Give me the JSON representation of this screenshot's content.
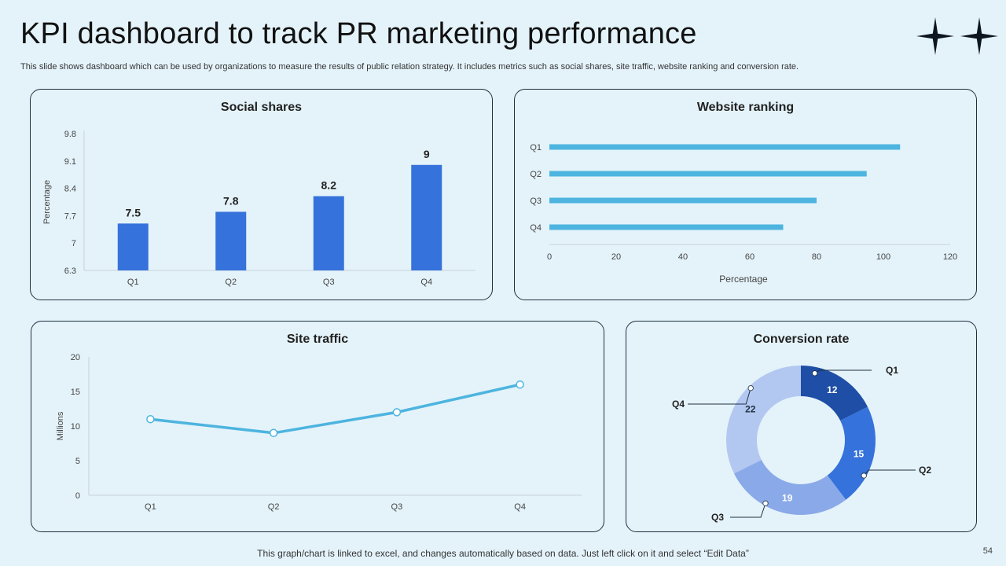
{
  "header": {
    "title": "KPI dashboard to track PR marketing performance",
    "subtitle": "This slide shows dashboard which can be used by organizations to measure the results of public relation strategy. It includes metrics such as social shares, site traffic, website ranking and conversion rate."
  },
  "footer": {
    "note": "This graph/chart is linked to excel, and changes automatically based on data. Just left click on it and select “Edit Data”",
    "page_number": "54"
  },
  "colors": {
    "bar_blue": "#3572db",
    "light_blue": "#4db4df",
    "q1": "#1f4ea6",
    "q2": "#3572db",
    "q3": "#8aa9e8",
    "q4": "#b3c8f1"
  },
  "chart_data": [
    {
      "id": "social",
      "type": "bar",
      "title": "Social shares",
      "categories": [
        "Q1",
        "Q2",
        "Q3",
        "Q4"
      ],
      "values": [
        7.5,
        7.8,
        8.2,
        9
      ],
      "value_labels": [
        "7.5",
        "7.8",
        "8.2",
        "9"
      ],
      "ylabel": "Percentage",
      "xlabel": "",
      "ylim": [
        6.3,
        9.8
      ],
      "yticks": [
        "9.8",
        "9.1",
        "8.4",
        "7.7",
        "7",
        "6.3"
      ],
      "grid": false
    },
    {
      "id": "rank",
      "type": "bar",
      "orientation": "horizontal",
      "title": "Website ranking",
      "categories": [
        "Q1",
        "Q2",
        "Q3",
        "Q4"
      ],
      "values": [
        105,
        95,
        80,
        70
      ],
      "xlabel": "Percentage",
      "xlim": [
        0,
        120
      ],
      "xticks": [
        "0",
        "20",
        "40",
        "60",
        "80",
        "100",
        "120"
      ],
      "grid": false
    },
    {
      "id": "traffic",
      "type": "line",
      "title": "Site traffic",
      "categories": [
        "Q1",
        "Q2",
        "Q3",
        "Q4"
      ],
      "values": [
        11,
        9,
        12,
        16
      ],
      "ylabel": "Millions",
      "ylim": [
        0,
        20
      ],
      "yticks": [
        "20",
        "15",
        "10",
        "5",
        "0"
      ],
      "grid": false
    },
    {
      "id": "conversion",
      "type": "pie",
      "variant": "donut",
      "title": "Conversion rate",
      "categories": [
        "Q1",
        "Q2",
        "Q3",
        "Q4"
      ],
      "values": [
        12,
        15,
        19,
        22
      ],
      "value_labels": [
        "12",
        "15",
        "19",
        "22"
      ]
    }
  ]
}
